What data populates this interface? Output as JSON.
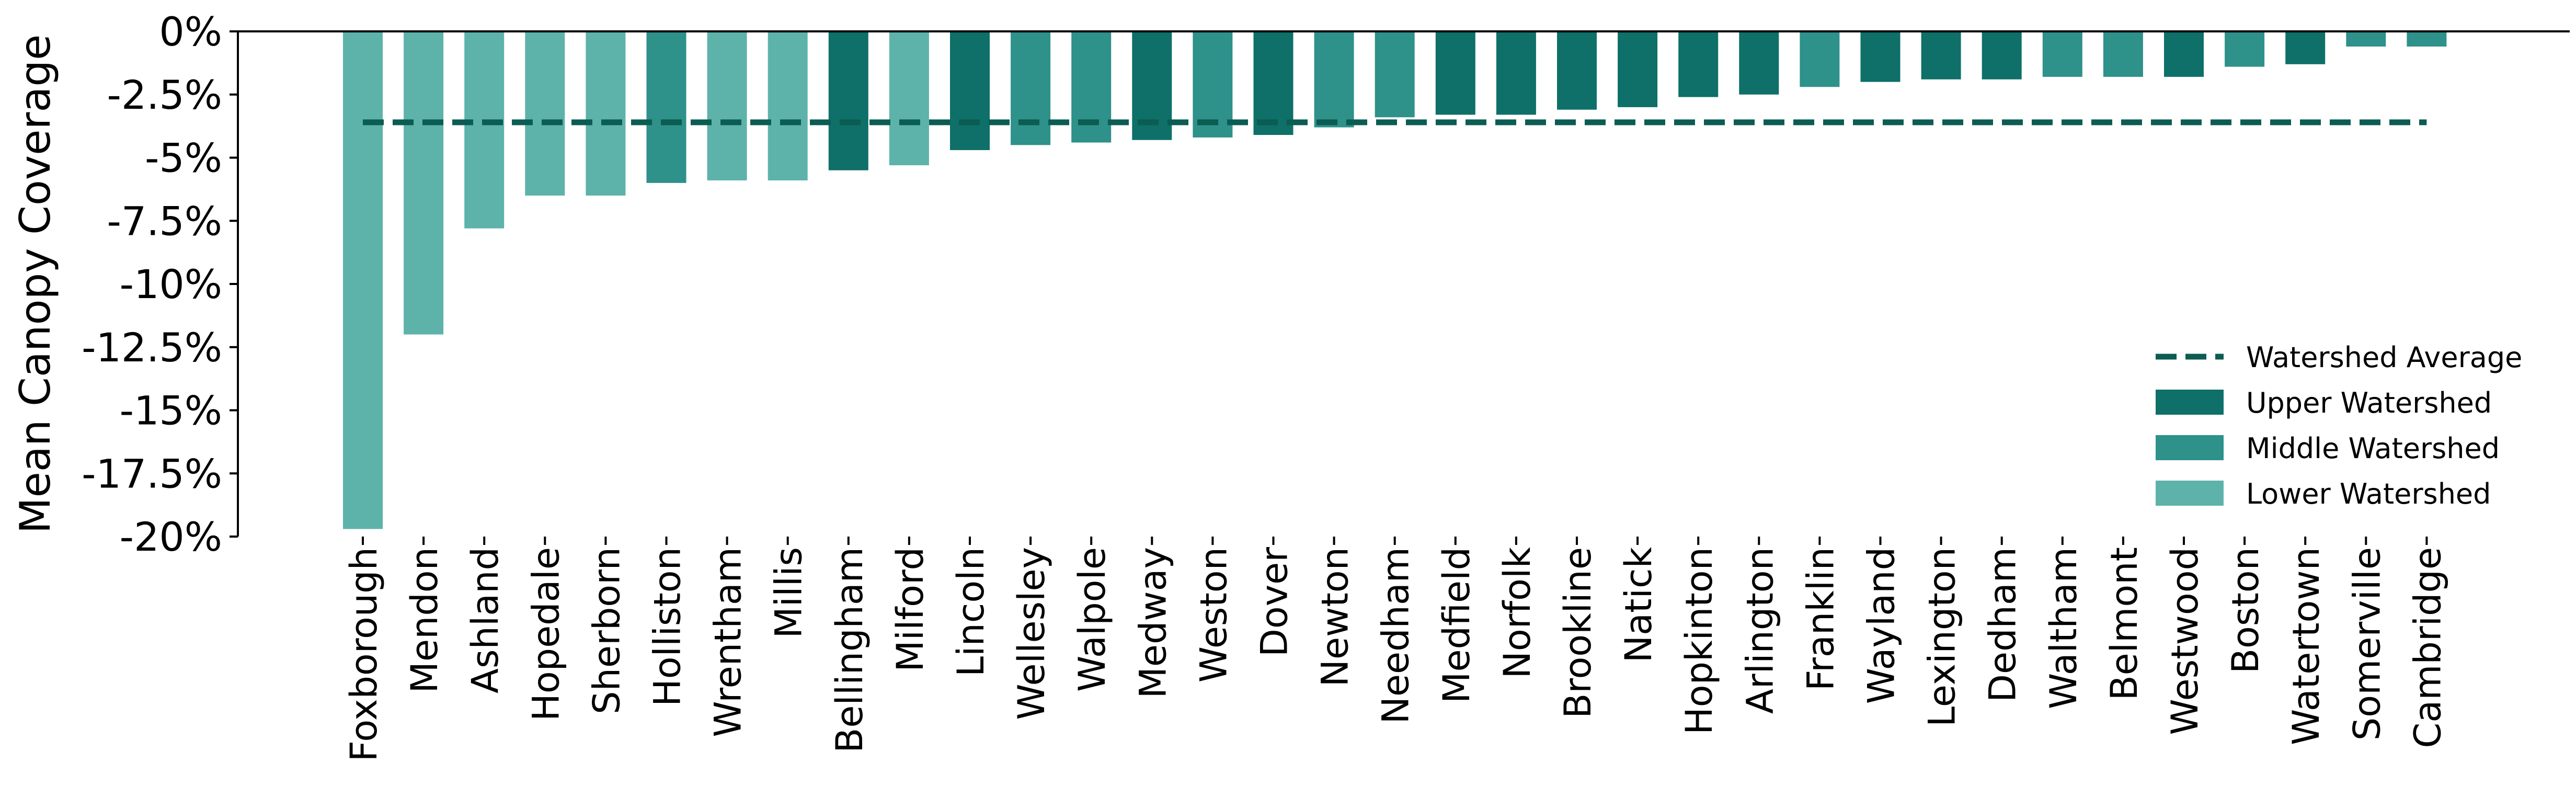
{
  "chart_data": {
    "type": "bar",
    "title": "",
    "xlabel": "",
    "ylabel": "Mean Canopy Coverage",
    "ylim": [
      -20,
      0
    ],
    "yticks": [
      0,
      -2.5,
      -5,
      -7.5,
      -10,
      -12.5,
      -15,
      -17.5,
      -20
    ],
    "ytick_labels": [
      "0%",
      "-2.5%",
      "-5%",
      "-7.5%",
      "-10%",
      "-12.5%",
      "-15%",
      "-17.5%",
      "-20%"
    ],
    "grid": false,
    "legend_position": "bottom-right",
    "colors": {
      "Upper Watershed": "#0e7068",
      "Middle Watershed": "#2e918a",
      "Lower Watershed": "#5db3aa",
      "Watershed Average": "#0b5c52"
    },
    "categories": [
      "Foxborough",
      "Mendon",
      "Ashland",
      "Hopedale",
      "Sherborn",
      "Holliston",
      "Wrentham",
      "Millis",
      "Bellingham",
      "Milford",
      "Lincoln",
      "Wellesley",
      "Walpole",
      "Medway",
      "Weston",
      "Dover",
      "Newton",
      "Needham",
      "Medfield",
      "Norfolk",
      "Brookline",
      "Natick",
      "Hopkinton",
      "Arlington",
      "Franklin",
      "Wayland",
      "Lexington",
      "Dedham",
      "Waltham",
      "Belmont",
      "Westwood",
      "Boston",
      "Watertown",
      "Somerville",
      "Cambridge"
    ],
    "values": [
      -19.7,
      -12.0,
      -7.8,
      -6.5,
      -6.5,
      -6.0,
      -5.9,
      -5.9,
      -5.5,
      -5.3,
      -4.7,
      -4.5,
      -4.4,
      -4.3,
      -4.2,
      -4.1,
      -3.8,
      -3.4,
      -3.3,
      -3.3,
      -3.1,
      -3.0,
      -2.6,
      -2.5,
      -2.2,
      -2.0,
      -1.9,
      -1.9,
      -1.8,
      -1.8,
      -1.8,
      -1.4,
      -1.3,
      -0.6,
      -0.6
    ],
    "groups": [
      "Lower Watershed",
      "Lower Watershed",
      "Lower Watershed",
      "Lower Watershed",
      "Lower Watershed",
      "Middle Watershed",
      "Lower Watershed",
      "Lower Watershed",
      "Upper Watershed",
      "Lower Watershed",
      "Upper Watershed",
      "Middle Watershed",
      "Middle Watershed",
      "Upper Watershed",
      "Middle Watershed",
      "Upper Watershed",
      "Middle Watershed",
      "Middle Watershed",
      "Upper Watershed",
      "Upper Watershed",
      "Upper Watershed",
      "Upper Watershed",
      "Upper Watershed",
      "Upper Watershed",
      "Middle Watershed",
      "Upper Watershed",
      "Upper Watershed",
      "Upper Watershed",
      "Middle Watershed",
      "Middle Watershed",
      "Upper Watershed",
      "Middle Watershed",
      "Upper Watershed",
      "Middle Watershed",
      "Middle Watershed"
    ],
    "average": -3.6,
    "legend": [
      "Watershed Average",
      "Upper Watershed",
      "Middle Watershed",
      "Lower Watershed"
    ]
  }
}
